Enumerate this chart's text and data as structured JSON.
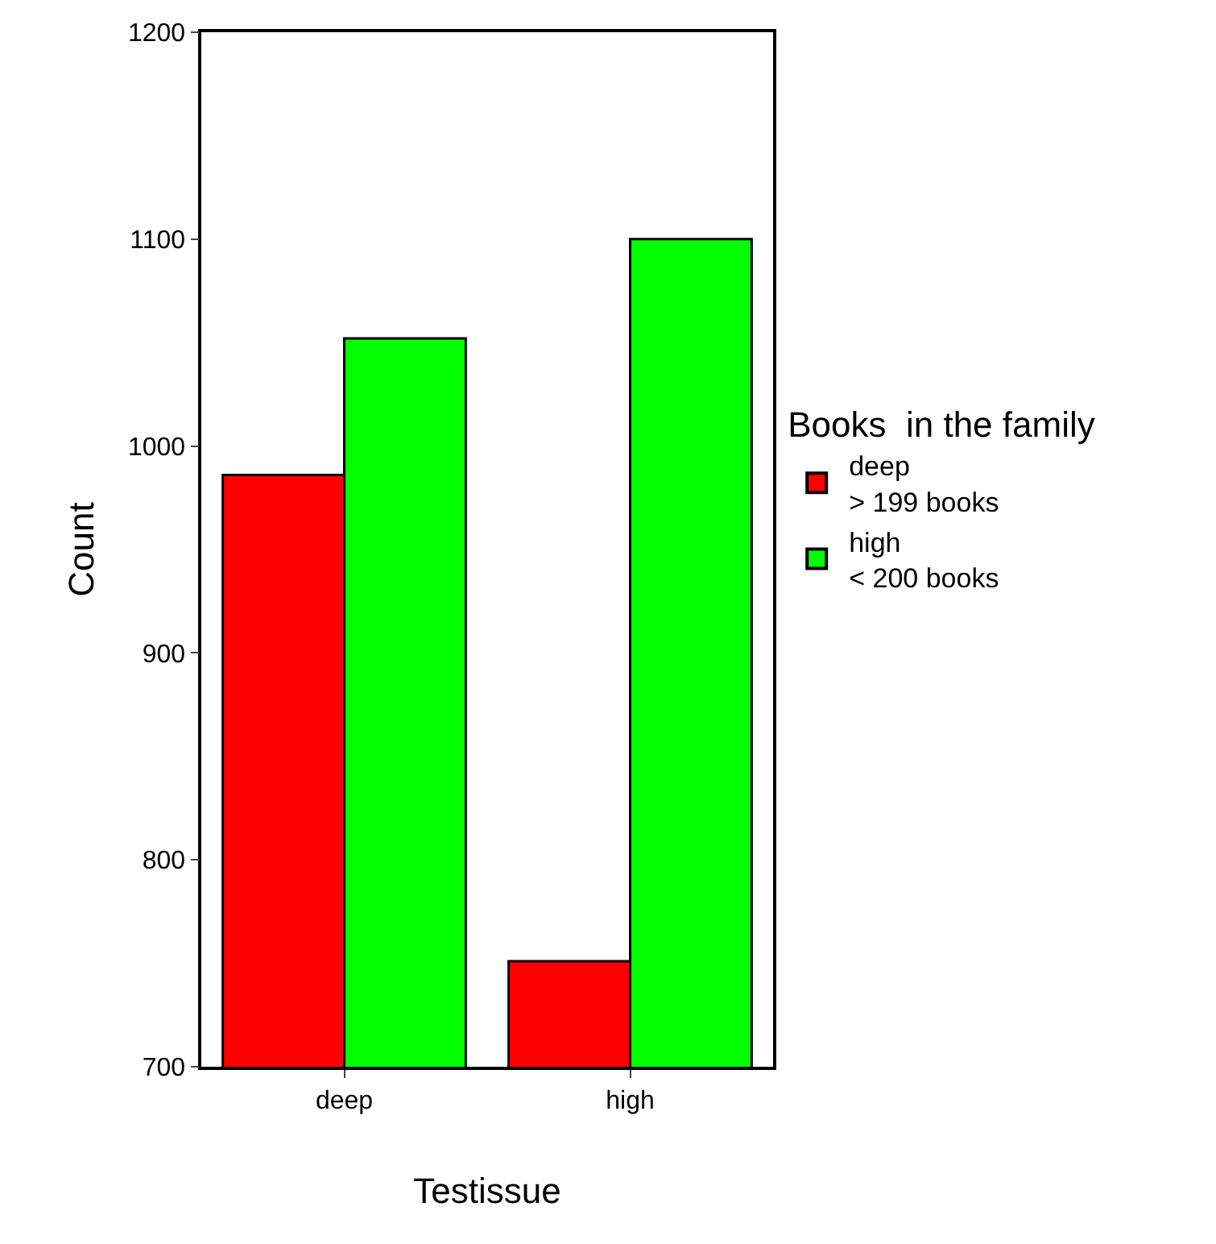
{
  "chart_data": {
    "type": "bar",
    "xlabel": "Testissue",
    "ylabel": "Count",
    "legend_title": "Books  in the family",
    "categories": [
      "deep",
      "high"
    ],
    "series": [
      {
        "name": "deep\n> 199 books",
        "color": "#ff0000",
        "values": [
          986,
          751
        ]
      },
      {
        "name": "high\n< 200 books",
        "color": "#00ff00",
        "values": [
          1052,
          1100
        ]
      }
    ],
    "ylim": [
      700,
      1200
    ],
    "yticks": [
      700,
      800,
      900,
      1000,
      1100,
      1200
    ],
    "grid": false,
    "legend": "right"
  }
}
